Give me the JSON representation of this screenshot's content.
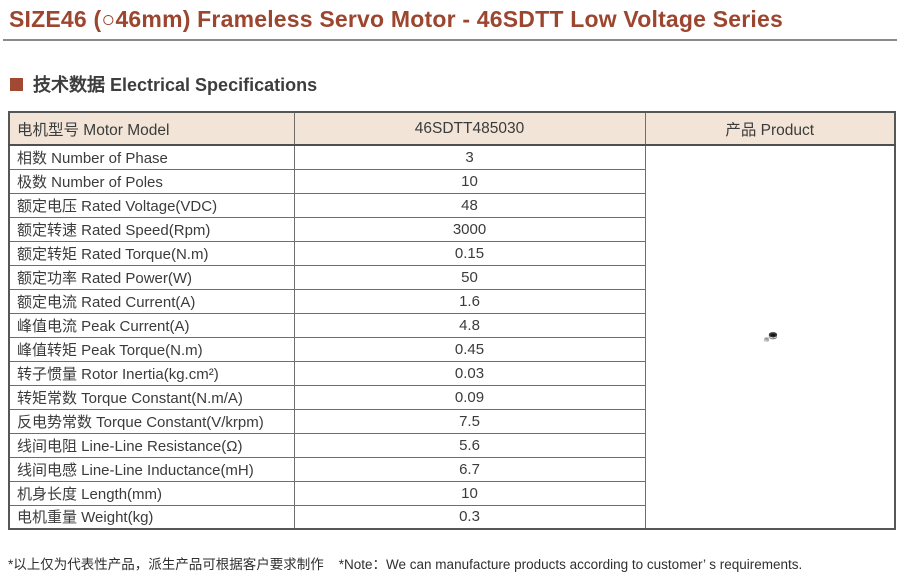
{
  "page": {
    "title": "SIZE46 (○46mm) Frameless Servo Motor - 46SDTT Low Voltage Series",
    "section_heading": "技术数据 Electrical Specifications",
    "footnote_cn": "*以上仅为代表性产品，派生产品可根据客户要求制作",
    "footnote_en": "*Note：We can manufacture products according to customer’ s requirements."
  },
  "colors": {
    "accent_title": "#9c452f",
    "section_bullet": "#a24a31",
    "table_header_bg": "#f2e5d7",
    "table_border": "#6e6e6e",
    "body_text": "#3b3b3b"
  },
  "table": {
    "headers": [
      "电机型号 Motor Model",
      "46SDTT485030",
      "产品 Product"
    ],
    "rows": [
      {
        "label": "相数 Number of Phase",
        "value": "3"
      },
      {
        "label": "极数 Number of Poles",
        "value": "10"
      },
      {
        "label": "额定电压 Rated Voltage(VDC)",
        "value": "48"
      },
      {
        "label": "额定转速 Rated Speed(Rpm)",
        "value": "3000"
      },
      {
        "label": "额定转矩 Rated Torque(N.m)",
        "value": "0.15"
      },
      {
        "label": "额定功率 Rated Power(W)",
        "value": "50"
      },
      {
        "label": "额定电流 Rated Current(A)",
        "value": "1.6"
      },
      {
        "label": "峰值电流 Peak Current(A)",
        "value": "4.8"
      },
      {
        "label": "峰值转矩 Peak Torque(N.m)",
        "value": "0.45"
      },
      {
        "label": "转子惯量 Rotor Inertia(kg.cm²)",
        "value": "0.03"
      },
      {
        "label": "转矩常数 Torque Constant(N.m/A)",
        "value": "0.09"
      },
      {
        "label": "反电势常数 Torque Constant(V/krpm)",
        "value": "7.5"
      },
      {
        "label": "线间电阻 Line-Line Resistance(Ω)",
        "value": "5.6"
      },
      {
        "label": "线间电感 Line-Line Inductance(mH)",
        "value": "6.7"
      },
      {
        "label": "机身长度 Length(mm)",
        "value": "10"
      },
      {
        "label": "电机重量 Weight(kg)",
        "value": "0.3"
      }
    ],
    "product_image": "frameless-servo-motor-rotor-and-stator-photo"
  }
}
